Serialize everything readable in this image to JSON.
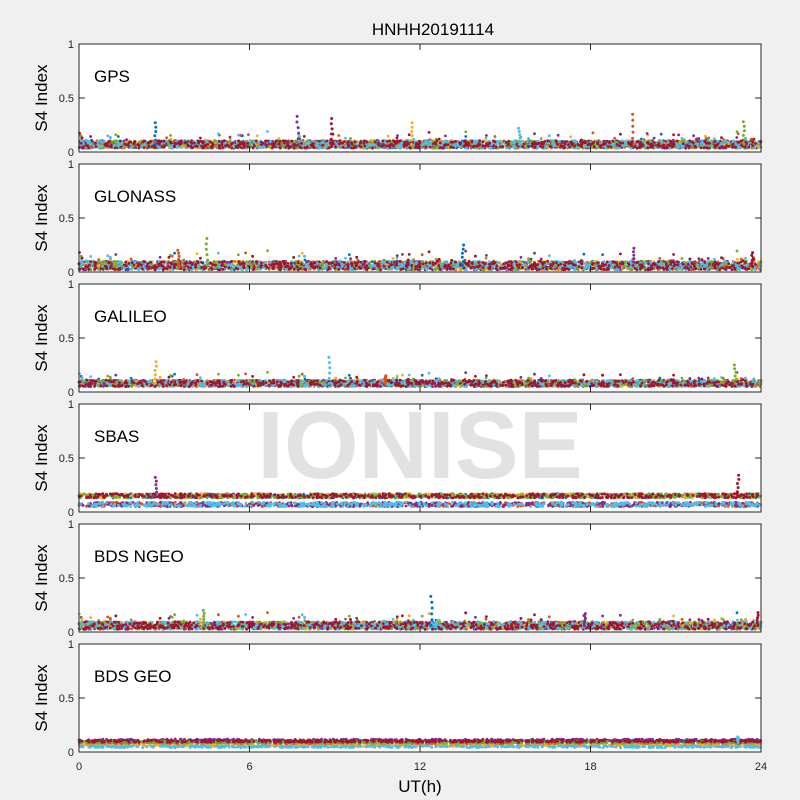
{
  "chart_data": {
    "type": "scatter",
    "title": "HNHH20191114",
    "xlabel": "UT(h)",
    "ylabel": "S4 Index",
    "xlim": [
      0,
      24
    ],
    "ylim": [
      0,
      1
    ],
    "xticks": [
      "0",
      "6",
      "12",
      "18",
      "24"
    ],
    "yticks": [
      "0",
      "0.5",
      "1"
    ],
    "watermark": "IONISE",
    "series_colors": [
      "#0072BD",
      "#D95319",
      "#EDB120",
      "#7E2F8E",
      "#77AC30",
      "#4DBEEE",
      "#A2142F"
    ],
    "panels": [
      {
        "label": "GPS",
        "baseline": 0.07,
        "spread": 0.035,
        "spikes": [
          [
            2.7,
            0.27
          ],
          [
            7.7,
            0.33
          ],
          [
            8.9,
            0.31
          ],
          [
            11.7,
            0.27
          ],
          [
            15.5,
            0.22
          ],
          [
            19.5,
            0.35
          ],
          [
            23.4,
            0.28
          ]
        ]
      },
      {
        "label": "GLONASS",
        "baseline": 0.06,
        "spread": 0.04,
        "spikes": [
          [
            3.5,
            0.2
          ],
          [
            4.5,
            0.31
          ],
          [
            13.5,
            0.25
          ],
          [
            19.5,
            0.22
          ],
          [
            23.7,
            0.18
          ]
        ]
      },
      {
        "label": "GALILEO",
        "baseline": 0.08,
        "spread": 0.03,
        "spikes": [
          [
            2.7,
            0.28
          ],
          [
            8.8,
            0.32
          ],
          [
            10.8,
            0.15
          ],
          [
            23.1,
            0.25
          ]
        ]
      },
      {
        "label": "SBAS",
        "baseline": 0.15,
        "spread": 0.025,
        "spikes": [
          [
            2.7,
            0.32
          ],
          [
            23.2,
            0.34
          ]
        ]
      },
      {
        "label": "BDS NGEO",
        "baseline": 0.06,
        "spread": 0.035,
        "spikes": [
          [
            4.4,
            0.2
          ],
          [
            12.4,
            0.33
          ],
          [
            17.8,
            0.17
          ],
          [
            23.9,
            0.18
          ]
        ]
      },
      {
        "label": "BDS GEO",
        "baseline": 0.09,
        "spread": 0.015,
        "spikes": [
          [
            23.2,
            0.14
          ]
        ]
      }
    ]
  }
}
